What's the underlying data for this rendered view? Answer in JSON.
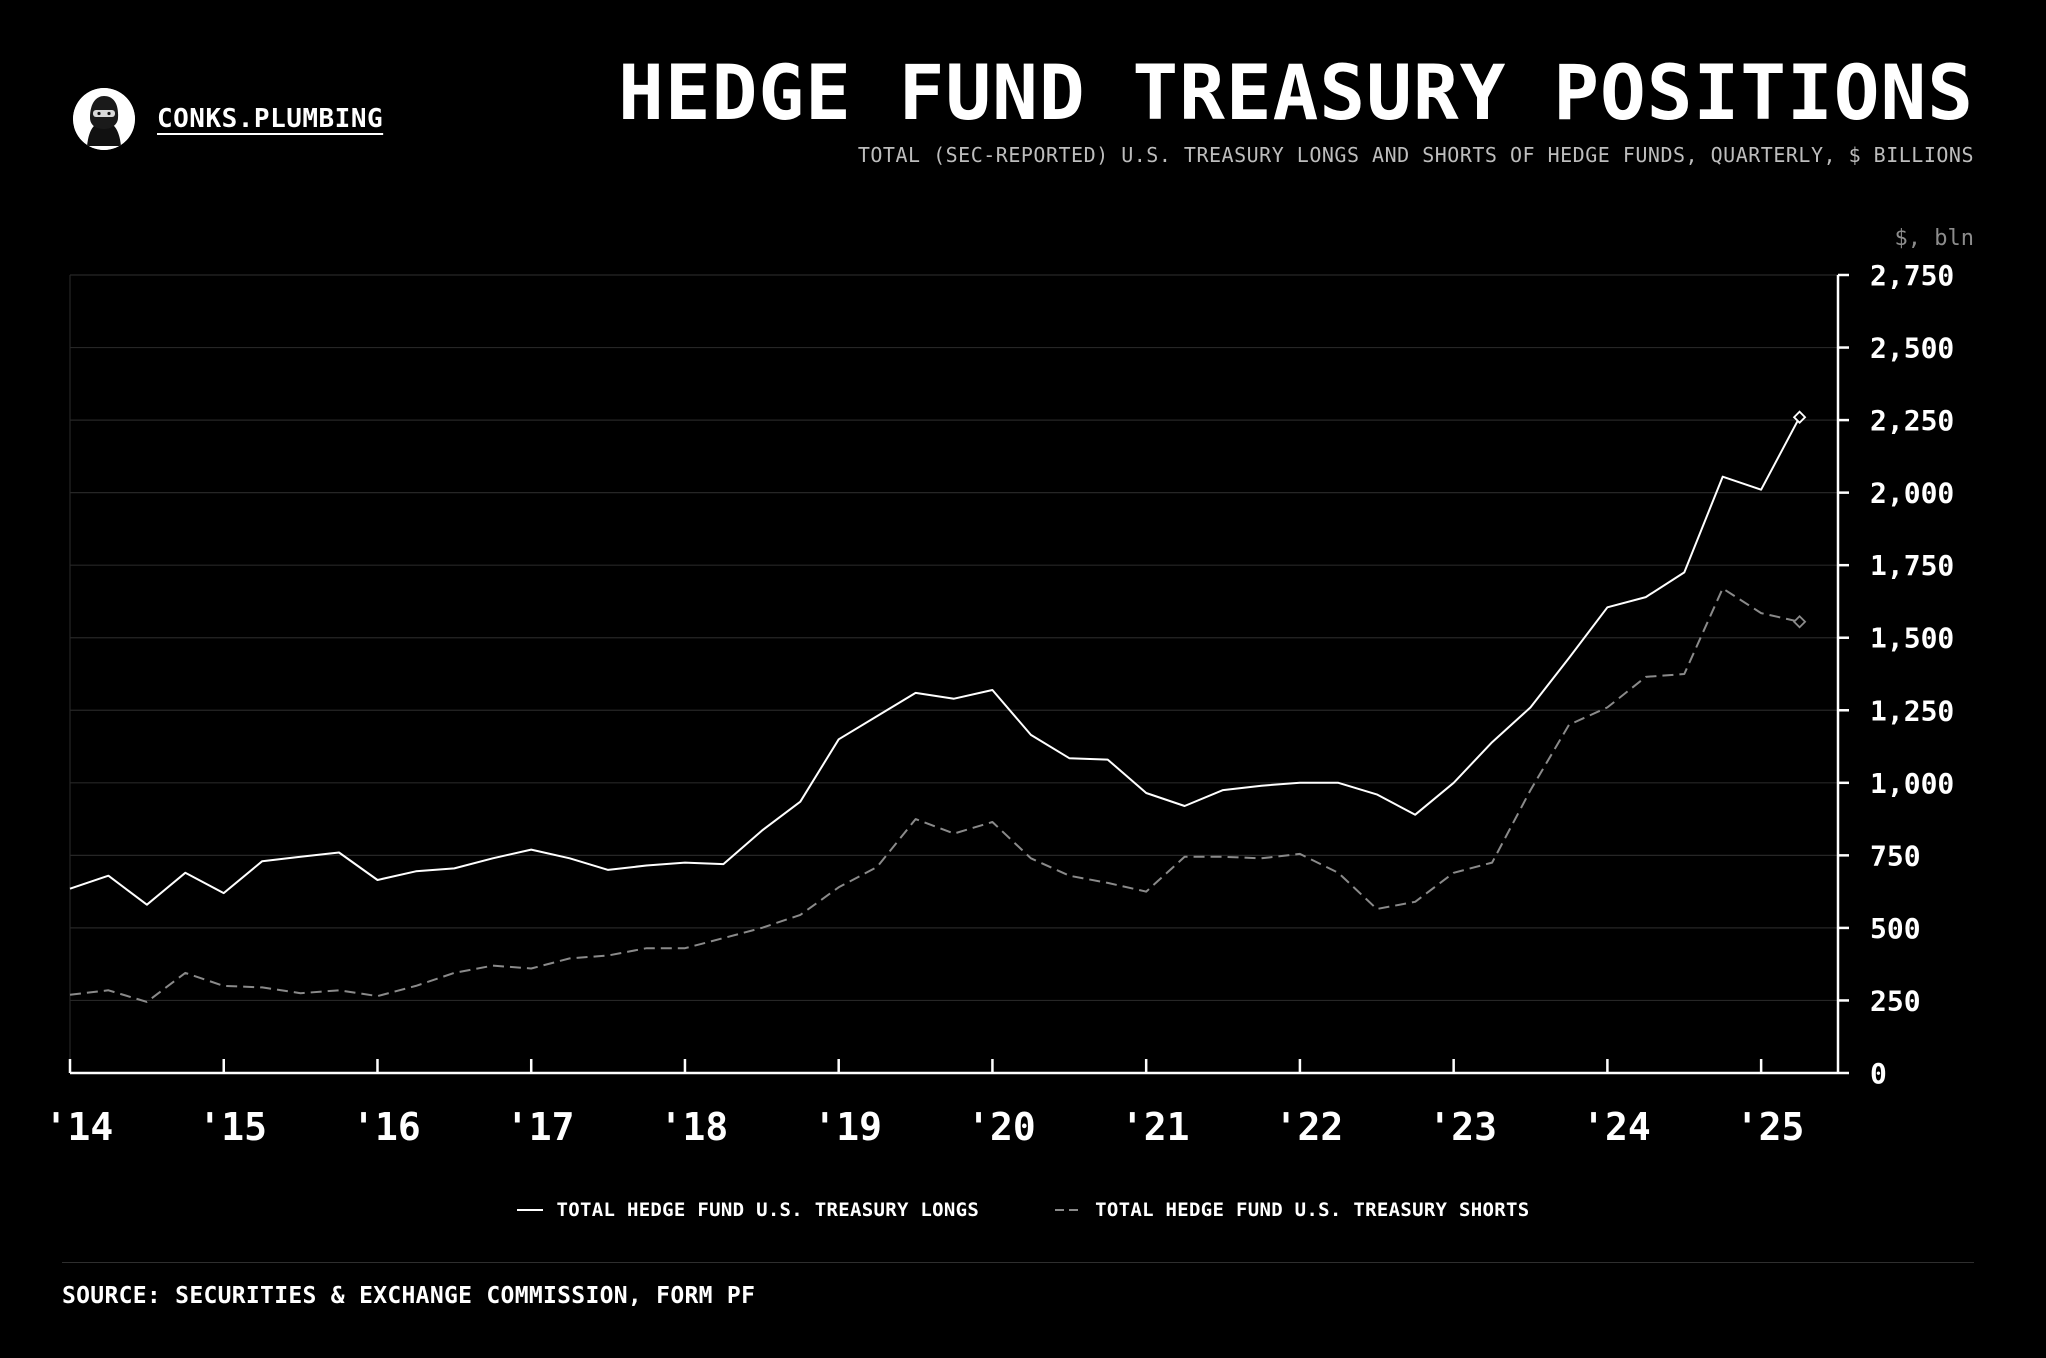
{
  "header": {
    "brand": "CONKS.PLUMBING",
    "title": "HEDGE FUND TREASURY POSITIONS",
    "subtitle": "TOTAL (SEC-REPORTED) U.S. TREASURY LONGS AND SHORTS OF HEDGE FUNDS, QUARTERLY, $ BILLIONS"
  },
  "legend": {
    "longs": "TOTAL HEDGE FUND U.S. TREASURY LONGS",
    "shorts": "TOTAL HEDGE FUND U.S. TREASURY SHORTS"
  },
  "footer": {
    "source": "SOURCE: SECURITIES & EXCHANGE COMMISSION, FORM PF"
  },
  "colors": {
    "background": "#000000",
    "longs": "#ffffff",
    "shorts": "#8a8a8a",
    "grid": "#262626",
    "axis": "#ffffff"
  },
  "chart_data": {
    "type": "line",
    "title": "HEDGE FUND TREASURY POSITIONS",
    "subtitle": "TOTAL (SEC-REPORTED) U.S. TREASURY LONGS AND SHORTS OF HEDGE FUNDS, QUARTERLY, $ BILLIONS",
    "ylabel": "$, bln",
    "xlabel": "",
    "x_start": 2014.0,
    "x_step": 0.25,
    "xlim": [
      2014.0,
      2025.5
    ],
    "ylim": [
      0,
      2750
    ],
    "y_ticks": [
      0,
      250,
      500,
      750,
      1000,
      1250,
      1500,
      1750,
      2000,
      2250,
      2500,
      2750
    ],
    "y_tick_labels": [
      "0",
      "250",
      "500",
      "750",
      "1,000",
      "1,250",
      "1,500",
      "1,750",
      "2,000",
      "2,250",
      "2,500",
      "2,750"
    ],
    "x_ticks": [
      2014,
      2015,
      2016,
      2017,
      2018,
      2019,
      2020,
      2021,
      2022,
      2023,
      2024,
      2025
    ],
    "x_tick_labels": [
      "'14",
      "'15",
      "'16",
      "'17",
      "'18",
      "'19",
      "'20",
      "'21",
      "'22",
      "'23",
      "'24",
      "'25"
    ],
    "y_axis_position": "right",
    "grid": true,
    "legend_position": "bottom-center",
    "series": [
      {
        "name": "TOTAL HEDGE FUND U.S. TREASURY LONGS",
        "style": "solid",
        "values": [
          635,
          680,
          580,
          690,
          620,
          730,
          745,
          760,
          665,
          695,
          705,
          740,
          770,
          740,
          700,
          715,
          725,
          720,
          835,
          935,
          1150,
          1230,
          1310,
          1290,
          1320,
          1165,
          1085,
          1080,
          965,
          920,
          975,
          990,
          1000,
          1000,
          960,
          890,
          1000,
          1140,
          1260,
          1430,
          1605,
          1640,
          1725,
          2055,
          2010,
          2260
        ]
      },
      {
        "name": "TOTAL HEDGE FUND U.S. TREASURY SHORTS",
        "style": "dashed",
        "values": [
          270,
          285,
          245,
          345,
          300,
          295,
          275,
          285,
          265,
          300,
          345,
          370,
          360,
          395,
          405,
          430,
          430,
          465,
          500,
          545,
          640,
          710,
          875,
          825,
          865,
          740,
          680,
          655,
          625,
          745,
          745,
          740,
          755,
          690,
          565,
          590,
          690,
          725,
          975,
          1200,
          1260,
          1365,
          1375,
          1670,
          1585,
          1555
        ]
      }
    ]
  }
}
